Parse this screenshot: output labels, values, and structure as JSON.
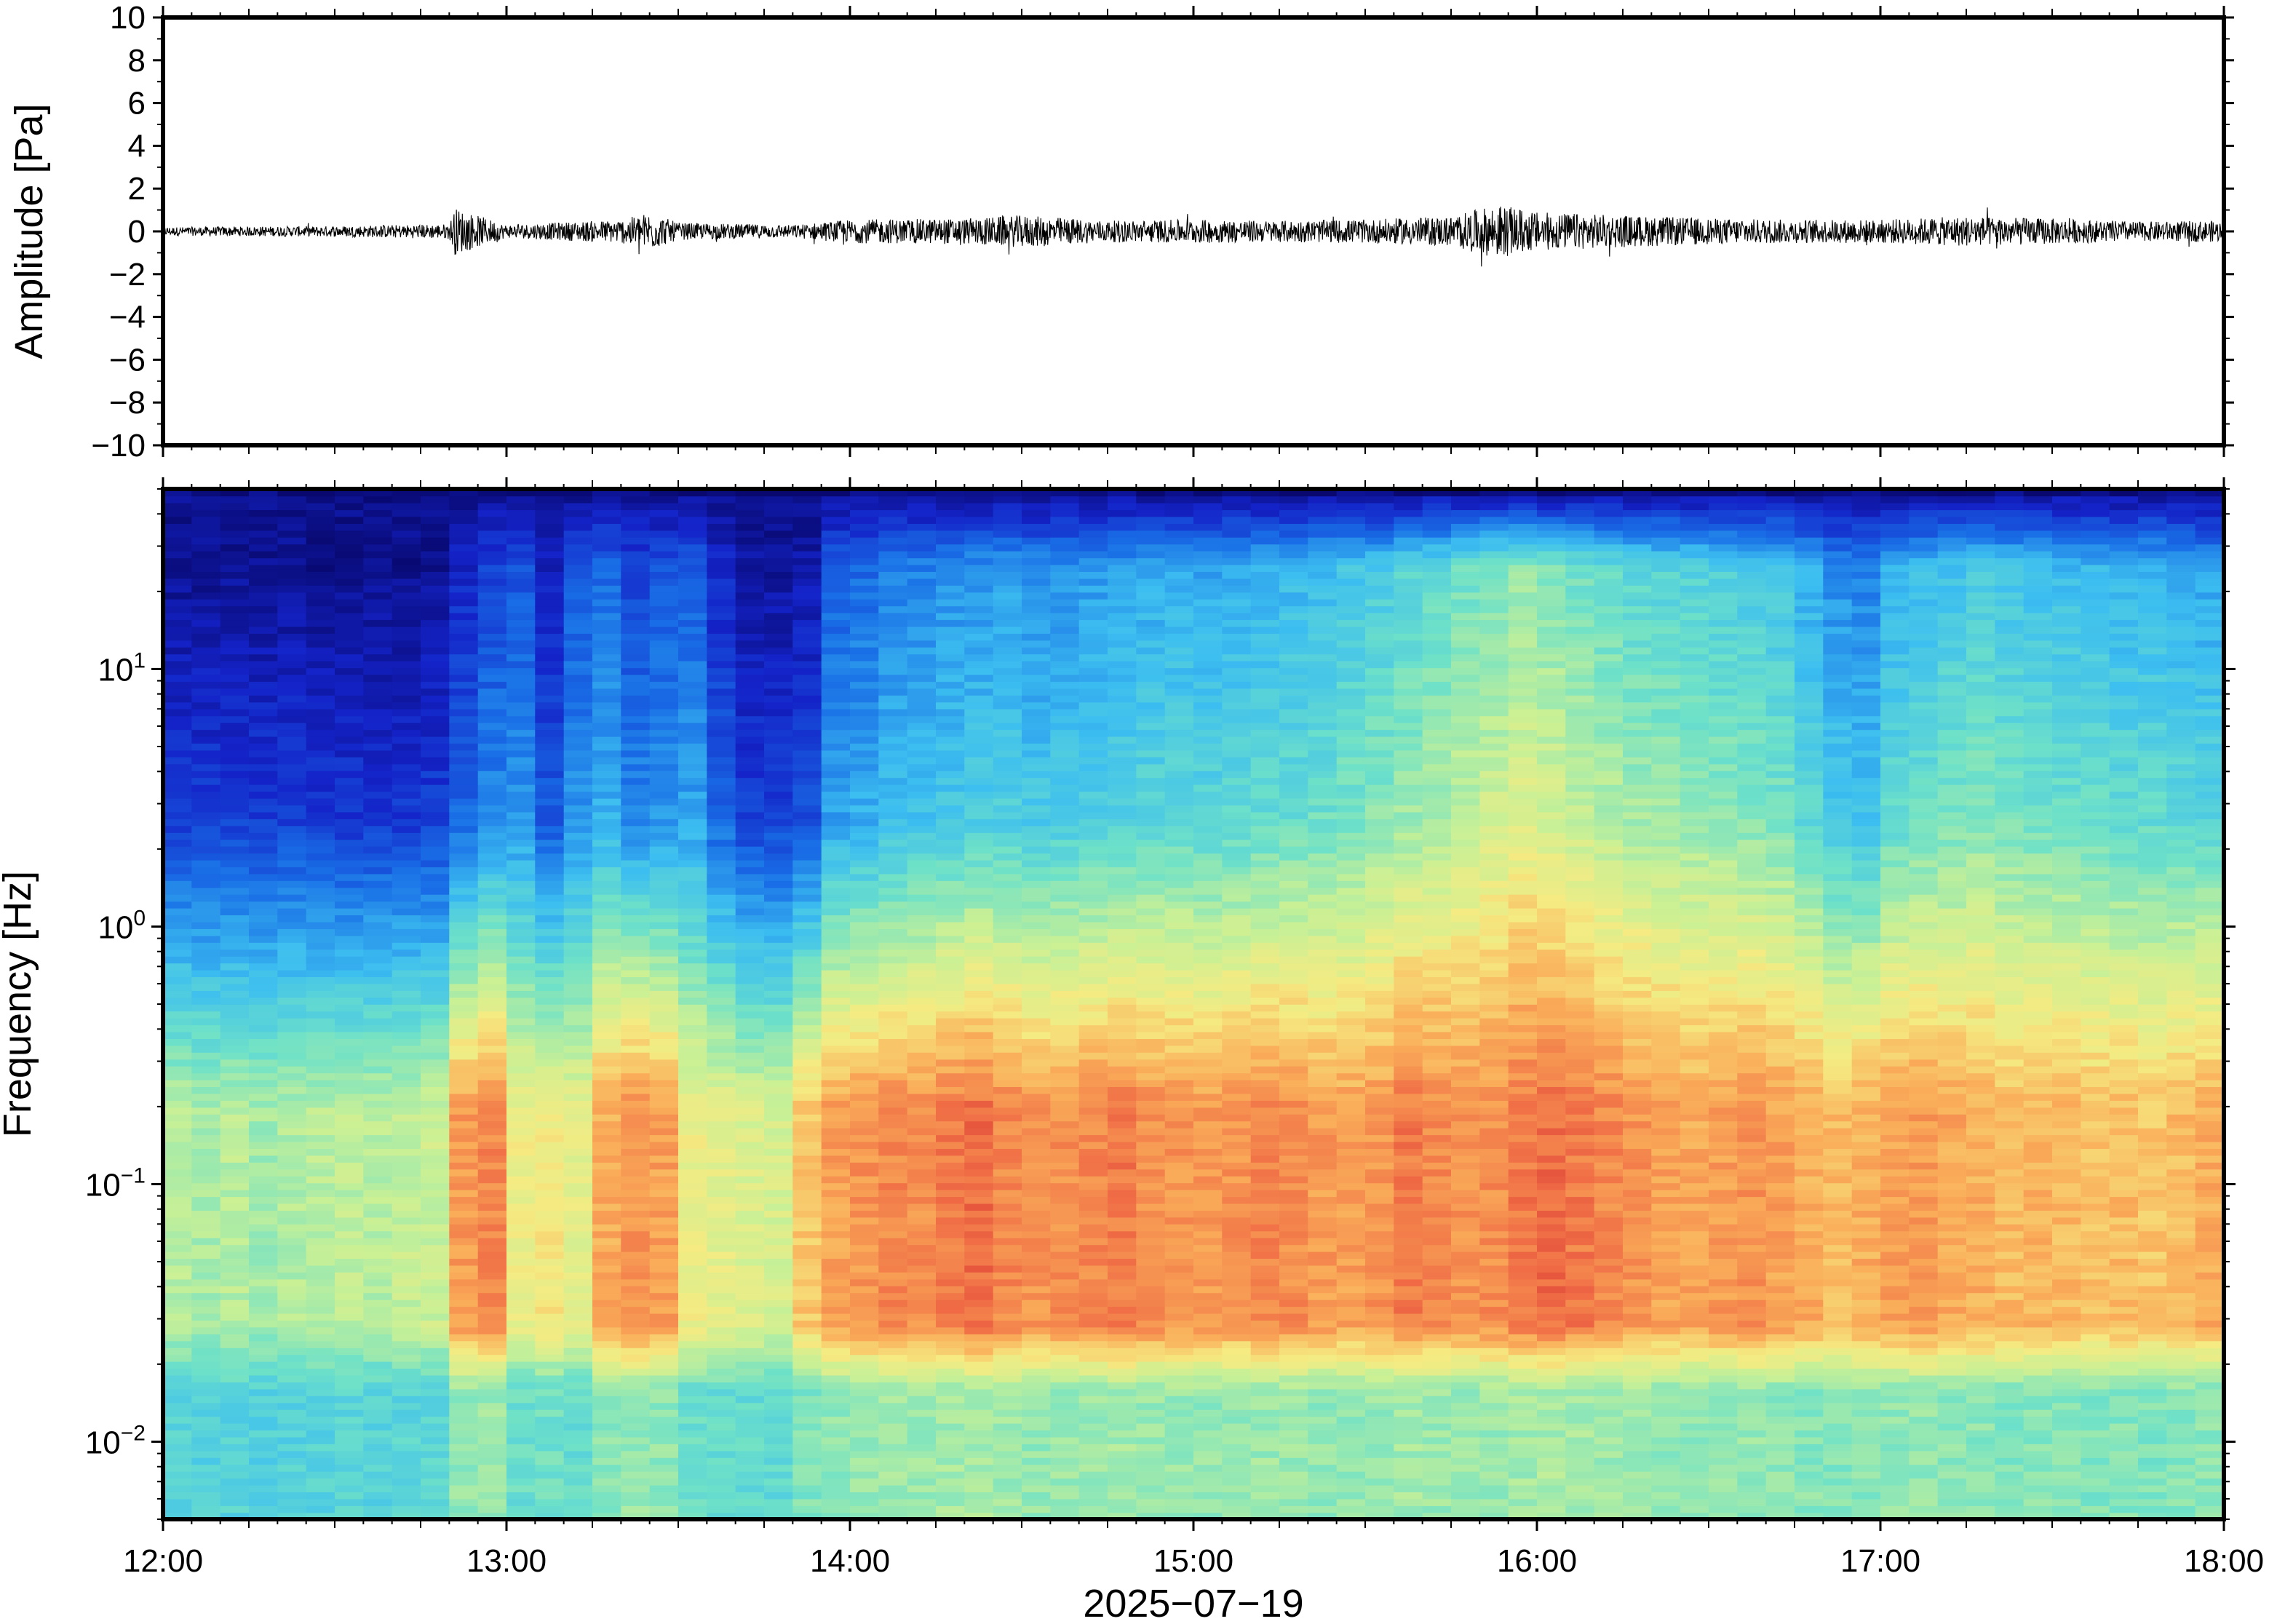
{
  "chart_data": [
    {
      "type": "line",
      "ylabel": "Amplitude [Pa]",
      "ylim": [
        -10,
        10
      ],
      "yticks": [
        "10",
        "8",
        "6",
        "4",
        "2",
        "0",
        "−2",
        "−4",
        "−6",
        "−8",
        "−10"
      ],
      "xlim": [
        "12:00",
        "18:00"
      ],
      "grid": false,
      "series": [
        {
          "color": "#000000",
          "envelope": {
            "x": [
              "12:00",
              "12:30",
              "12:50",
              "12:51",
              "13:00",
              "13:20",
              "13:25",
              "13:30",
              "13:50",
              "14:00",
              "14:20",
              "14:30",
              "14:45",
              "15:00",
              "15:15",
              "15:30",
              "15:45",
              "15:53",
              "16:00",
              "16:15",
              "16:30",
              "16:45",
              "17:00",
              "17:15",
              "17:30",
              "17:45",
              "18:00"
            ],
            "y": [
              0.2,
              0.25,
              0.35,
              1.1,
              0.3,
              0.55,
              0.9,
              0.4,
              0.3,
              0.55,
              0.6,
              0.75,
              0.5,
              0.55,
              0.5,
              0.55,
              0.7,
              1.25,
              0.9,
              0.75,
              0.6,
              0.55,
              0.55,
              0.7,
              0.6,
              0.45,
              0.5
            ]
          }
        }
      ]
    },
    {
      "type": "heatmap",
      "title": "",
      "xlabel": "2025−07−19",
      "ylabel": "Frequency [Hz]",
      "xlim": [
        "12:00",
        "18:00"
      ],
      "xticks": [
        "12:00",
        "13:00",
        "14:00",
        "15:00",
        "16:00",
        "17:00",
        "18:00"
      ],
      "ylim": [
        0.005,
        50
      ],
      "yscale": "log",
      "yticks": [
        {
          "base": "10",
          "exp": "1",
          "value": 10
        },
        {
          "base": "10",
          "exp": "0",
          "value": 1
        },
        {
          "base": "10",
          "exp": "−1",
          "value": 0.1
        },
        {
          "base": "10",
          "exp": "−2",
          "value": 0.01
        }
      ],
      "colormap": "spectral (blue = low power, red = high power)",
      "colors": {
        "low": "#0a0a7a",
        "mid": "#eef08a",
        "high": "#e8463a"
      },
      "time_columns": [
        "12:00",
        "12:05",
        "12:10",
        "12:15",
        "12:20",
        "12:25",
        "12:30",
        "12:35",
        "12:40",
        "12:45",
        "12:50",
        "12:55",
        "13:00",
        "13:05",
        "13:10",
        "13:15",
        "13:20",
        "13:25",
        "13:30",
        "13:35",
        "13:40",
        "13:45",
        "13:50",
        "13:55",
        "14:00",
        "14:05",
        "14:10",
        "14:15",
        "14:20",
        "14:25",
        "14:30",
        "14:35",
        "14:40",
        "14:45",
        "14:50",
        "14:55",
        "15:00",
        "15:05",
        "15:10",
        "15:15",
        "15:20",
        "15:25",
        "15:30",
        "15:35",
        "15:40",
        "15:45",
        "15:50",
        "15:55",
        "16:00",
        "16:05",
        "16:10",
        "16:15",
        "16:20",
        "16:25",
        "16:30",
        "16:35",
        "16:40",
        "16:45",
        "16:50",
        "16:55",
        "17:00",
        "17:05",
        "17:10",
        "17:15",
        "17:20",
        "17:25",
        "17:30",
        "17:35",
        "17:40",
        "17:45",
        "17:50",
        "17:55"
      ],
      "power_relative": {
        "description": "relative power 0 (dark blue) to 1 (red), per 5-minute column: high-frequency band (~10 Hz), microbarom band (~0.1 Hz)",
        "high_band": [
          0.05,
          0.05,
          0.05,
          0.05,
          0.05,
          0.04,
          0.04,
          0.04,
          0.04,
          0.05,
          0.12,
          0.18,
          0.2,
          0.1,
          0.2,
          0.24,
          0.18,
          0.2,
          0.22,
          0.12,
          0.06,
          0.06,
          0.08,
          0.22,
          0.24,
          0.27,
          0.28,
          0.3,
          0.31,
          0.32,
          0.3,
          0.31,
          0.32,
          0.33,
          0.34,
          0.35,
          0.34,
          0.35,
          0.36,
          0.37,
          0.38,
          0.4,
          0.42,
          0.45,
          0.47,
          0.5,
          0.52,
          0.55,
          0.53,
          0.5,
          0.48,
          0.46,
          0.45,
          0.44,
          0.43,
          0.42,
          0.4,
          0.35,
          0.3,
          0.28,
          0.36,
          0.38,
          0.4,
          0.42,
          0.4,
          0.39,
          0.38,
          0.37,
          0.36,
          0.36,
          0.35,
          0.34
        ],
        "microbarom_band": [
          0.6,
          0.58,
          0.6,
          0.57,
          0.59,
          0.6,
          0.61,
          0.6,
          0.62,
          0.63,
          0.85,
          0.88,
          0.7,
          0.72,
          0.68,
          0.82,
          0.86,
          0.84,
          0.7,
          0.68,
          0.66,
          0.65,
          0.78,
          0.84,
          0.86,
          0.88,
          0.87,
          0.9,
          0.92,
          0.88,
          0.86,
          0.87,
          0.88,
          0.9,
          0.87,
          0.86,
          0.85,
          0.86,
          0.88,
          0.87,
          0.85,
          0.84,
          0.86,
          0.9,
          0.88,
          0.86,
          0.87,
          0.9,
          0.92,
          0.9,
          0.88,
          0.86,
          0.84,
          0.83,
          0.85,
          0.86,
          0.84,
          0.82,
          0.8,
          0.82,
          0.84,
          0.85,
          0.83,
          0.82,
          0.8,
          0.81,
          0.8,
          0.79,
          0.8,
          0.78,
          0.8,
          0.82
        ]
      }
    }
  ]
}
